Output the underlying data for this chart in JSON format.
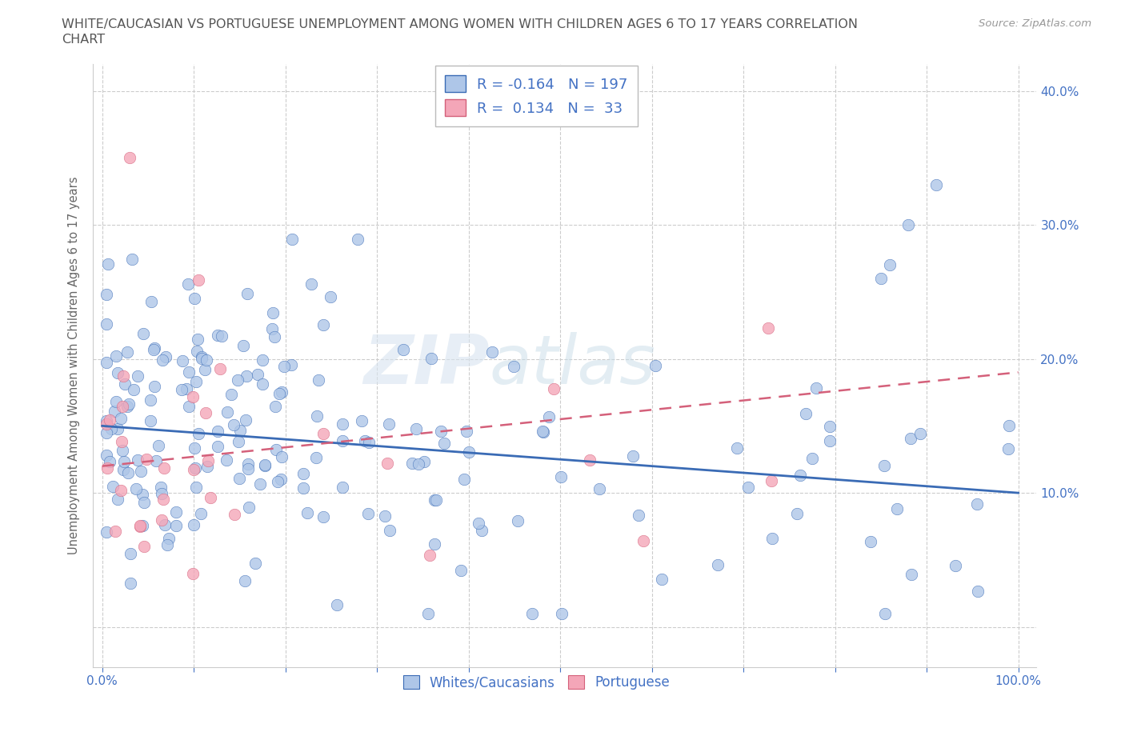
{
  "title_line1": "WHITE/CAUCASIAN VS PORTUGUESE UNEMPLOYMENT AMONG WOMEN WITH CHILDREN AGES 6 TO 17 YEARS CORRELATION",
  "title_line2": "CHART",
  "source_text": "Source: ZipAtlas.com",
  "ylabel": "Unemployment Among Women with Children Ages 6 to 17 years",
  "white_color": "#aec6e8",
  "portuguese_color": "#f4a6b8",
  "white_line_color": "#3a6bb5",
  "portuguese_line_color": "#d4607a",
  "white_R": -0.164,
  "white_N": 197,
  "portuguese_R": 0.134,
  "portuguese_N": 33,
  "watermark_zip": "ZIP",
  "watermark_atlas": "atlas",
  "legend_label_white": "Whites/Caucasians",
  "legend_label_portuguese": "Portuguese",
  "tick_color": "#4472c4",
  "grid_color": "#cccccc",
  "title_color": "#555555",
  "source_color": "#999999",
  "ylabel_color": "#666666"
}
